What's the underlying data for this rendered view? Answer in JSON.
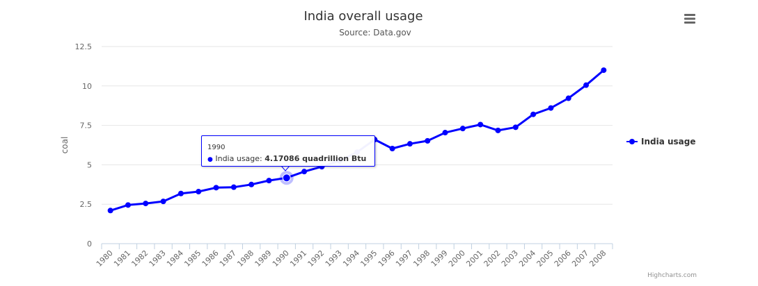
{
  "chart_data": {
    "type": "line",
    "title": "India overall usage",
    "subtitle": "Source: Data.gov",
    "ylabel": "coal",
    "xlabel": "",
    "ylim": [
      0,
      12.5
    ],
    "yticks": [
      "0",
      "2.5",
      "5",
      "7.5",
      "10",
      "12.5"
    ],
    "ytick_values": [
      0,
      2.5,
      5,
      7.5,
      10,
      12.5
    ],
    "categories": [
      "1980",
      "1981",
      "1982",
      "1983",
      "1984",
      "1985",
      "1986",
      "1987",
      "1988",
      "1989",
      "1990",
      "1991",
      "1992",
      "1993",
      "1994",
      "1995",
      "1996",
      "1997",
      "1998",
      "1999",
      "2000",
      "2001",
      "2002",
      "2003",
      "2004",
      "2005",
      "2006",
      "2007",
      "2008"
    ],
    "series": [
      {
        "name": "India usage",
        "color": "#0000ff",
        "values": [
          2.1,
          2.45,
          2.55,
          2.68,
          3.18,
          3.3,
          3.55,
          3.58,
          3.75,
          4.0,
          4.17086,
          4.57,
          4.88,
          5.25,
          5.8,
          6.6,
          6.03,
          6.33,
          6.52,
          7.04,
          7.3,
          7.55,
          7.18,
          7.38,
          8.2,
          8.6,
          9.22,
          10.05,
          11.0
        ]
      }
    ],
    "legend_position": "right",
    "grid": true,
    "tooltip": {
      "x": "1990",
      "series_name": "India usage",
      "value_text": "4.17086 quadrillion Btu",
      "index": 10
    },
    "credits": "Highcharts.com"
  },
  "menu_icon": "hamburger-menu-icon"
}
